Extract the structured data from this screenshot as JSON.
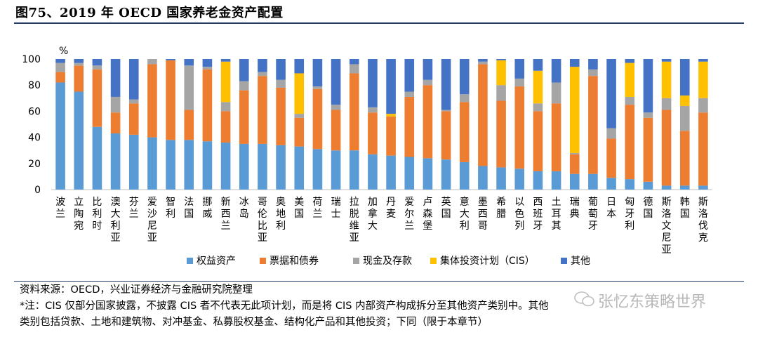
{
  "title": "图75、2019 年 OECD 国家养老金资产配置",
  "colors": {
    "equity": "#5b9bd5",
    "bills_bonds": "#ed7d31",
    "cash": "#a5a5a5",
    "cis": "#ffc000",
    "other": "#4472c4"
  },
  "chart_data": {
    "type": "bar",
    "stacked": true,
    "unit_label": "%",
    "ylim": [
      0,
      100
    ],
    "yticks": [
      0,
      20,
      40,
      60,
      80,
      100
    ],
    "grid": false,
    "legend_position": "bottom",
    "categories": [
      "波兰",
      "立陶宛",
      "比利时",
      "澳大利亚",
      "芬兰",
      "爱沙尼亚",
      "智利",
      "法国",
      "挪威",
      "新西兰",
      "冰岛",
      "哥伦比亚",
      "奥地利",
      "美国",
      "荷兰",
      "瑞士",
      "拉脱维亚",
      "加拿大",
      "丹麦",
      "爱尔兰",
      "卢森堡",
      "英国",
      "意大利",
      "墨西哥",
      "希腊",
      "以色列",
      "西班牙",
      "土耳其",
      "瑞典",
      "葡萄牙",
      "日本",
      "匈牙利",
      "德国",
      "斯洛文尼亚",
      "韩国",
      "斯洛伐克"
    ],
    "series": [
      {
        "name": "权益资产",
        "key": "equity",
        "values": [
          82,
          75,
          48,
          43,
          42,
          40,
          38,
          38,
          37,
          36,
          35,
          35,
          34,
          33,
          31,
          30,
          30,
          27,
          26,
          25,
          24,
          23,
          21,
          18,
          17,
          16,
          14,
          14,
          12,
          12,
          9,
          8,
          6,
          3,
          3,
          3
        ]
      },
      {
        "name": "票据和债券",
        "key": "bills_bonds",
        "values": [
          8,
          20,
          44,
          16,
          24,
          56,
          61,
          23,
          55,
          24,
          41,
          52,
          44,
          22,
          46,
          31,
          59,
          32,
          30,
          46,
          56,
          37,
          46,
          78,
          51,
          63,
          46,
          52,
          15,
          75,
          30,
          57,
          49,
          58,
          42,
          56
        ]
      },
      {
        "name": "现金及存款",
        "key": "cash",
        "values": [
          7,
          2,
          3,
          12,
          3,
          4,
          0,
          34,
          2,
          7,
          7,
          3,
          6,
          3,
          2,
          4,
          7,
          4,
          0,
          4,
          4,
          1,
          6,
          2,
          12,
          6,
          6,
          16,
          1,
          5,
          8,
          6,
          4,
          9,
          19,
          11
        ]
      },
      {
        "name": "集体投资计划（CIS）",
        "key": "cis",
        "values": [
          0,
          0,
          0,
          0,
          0,
          0,
          0,
          0,
          0,
          31,
          0,
          0,
          0,
          31,
          0,
          0,
          0,
          0,
          2,
          0,
          0,
          0,
          0,
          0,
          19,
          0,
          25,
          0,
          66,
          0,
          0,
          26,
          0,
          28,
          8,
          28
        ]
      },
      {
        "name": "其他",
        "key": "other",
        "values": [
          3,
          3,
          5,
          29,
          31,
          0,
          1,
          5,
          6,
          2,
          17,
          10,
          16,
          11,
          21,
          35,
          4,
          37,
          42,
          25,
          16,
          39,
          27,
          2,
          1,
          15,
          9,
          18,
          6,
          8,
          53,
          3,
          41,
          2,
          28,
          2
        ]
      }
    ]
  },
  "notes": {
    "source": "资料来源：OECD，兴业证券经济与金融研究院整理",
    "note_line1": "*注：CIS 仅部分国家披露，不披露 CIS 者不代表无此项计划，而是将 CIS 内部资产构成拆分至其他资产类别中。其他",
    "note_line2": "类别包括贷款、土地和建筑物、对冲基金、私募股权基金、结构化产品和其他投资；下同（限于本章节）"
  },
  "watermark": "张忆东策略世界"
}
